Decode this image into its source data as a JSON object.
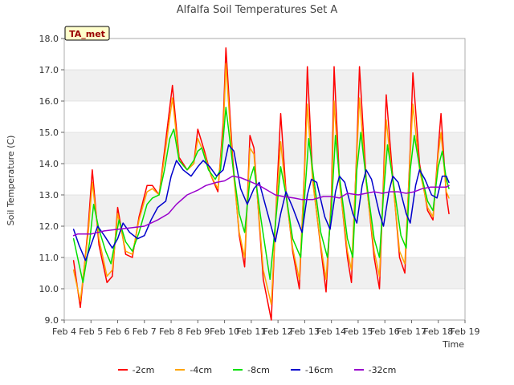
{
  "chart_data": {
    "type": "line",
    "title": "Alfalfa Soil Temperatures Set A",
    "xlabel": "Time",
    "ylabel": "Soil Temperature (C)",
    "badge": "TA_met",
    "xlim": [
      4,
      19
    ],
    "ylim": [
      9.0,
      18.0
    ],
    "x_ticks": [
      4,
      5,
      6,
      7,
      8,
      9,
      10,
      11,
      12,
      13,
      14,
      15,
      16,
      17,
      18,
      19
    ],
    "x_tick_labels": [
      "Feb 4",
      "Feb 5",
      "Feb 6",
      "Feb 7",
      "Feb 8",
      "Feb 9",
      "Feb 10",
      "Feb 11",
      "Feb 12",
      "Feb 13",
      "Feb 14",
      "Feb 15",
      "Feb 16",
      "Feb 17",
      "Feb 18",
      "Feb 19"
    ],
    "y_ticks": [
      9.0,
      10.0,
      11.0,
      12.0,
      13.0,
      14.0,
      15.0,
      16.0,
      17.0,
      18.0
    ],
    "y_tick_labels": [
      "9.0",
      "10.0",
      "11.0",
      "12.0",
      "13.0",
      "14.0",
      "15.0",
      "16.0",
      "17.0",
      "18.0"
    ],
    "grid": true,
    "legend_position": "bottom",
    "series": [
      {
        "name": "-2cm",
        "color": "#ff0000",
        "points": [
          [
            4.35,
            10.9
          ],
          [
            4.6,
            9.4
          ],
          [
            4.9,
            12.0
          ],
          [
            5.05,
            13.8
          ],
          [
            5.3,
            11.4
          ],
          [
            5.6,
            10.2
          ],
          [
            5.8,
            10.4
          ],
          [
            6.0,
            12.6
          ],
          [
            6.3,
            11.1
          ],
          [
            6.55,
            11.0
          ],
          [
            6.8,
            12.3
          ],
          [
            7.1,
            13.3
          ],
          [
            7.3,
            13.3
          ],
          [
            7.55,
            13.0
          ],
          [
            7.75,
            14.4
          ],
          [
            8.05,
            16.5
          ],
          [
            8.3,
            14.2
          ],
          [
            8.6,
            13.8
          ],
          [
            8.85,
            14.0
          ],
          [
            9.0,
            15.1
          ],
          [
            9.25,
            14.4
          ],
          [
            9.5,
            13.6
          ],
          [
            9.75,
            13.1
          ],
          [
            9.95,
            15.3
          ],
          [
            10.05,
            17.7
          ],
          [
            10.3,
            14.2
          ],
          [
            10.55,
            11.7
          ],
          [
            10.75,
            10.7
          ],
          [
            10.95,
            14.9
          ],
          [
            11.1,
            14.5
          ],
          [
            11.45,
            10.3
          ],
          [
            11.75,
            9.0
          ],
          [
            11.95,
            13.0
          ],
          [
            12.1,
            15.6
          ],
          [
            12.3,
            13.1
          ],
          [
            12.55,
            11.2
          ],
          [
            12.8,
            10.0
          ],
          [
            13.0,
            14.0
          ],
          [
            13.1,
            17.1
          ],
          [
            13.3,
            13.5
          ],
          [
            13.6,
            11.3
          ],
          [
            13.8,
            9.9
          ],
          [
            14.0,
            13.0
          ],
          [
            14.1,
            17.1
          ],
          [
            14.3,
            13.5
          ],
          [
            14.6,
            11.0
          ],
          [
            14.75,
            10.2
          ],
          [
            14.95,
            14.5
          ],
          [
            15.05,
            17.1
          ],
          [
            15.3,
            13.5
          ],
          [
            15.6,
            11.0
          ],
          [
            15.8,
            10.0
          ],
          [
            15.95,
            13.5
          ],
          [
            16.05,
            16.2
          ],
          [
            16.3,
            13.5
          ],
          [
            16.55,
            11.0
          ],
          [
            16.75,
            10.5
          ],
          [
            16.95,
            14.5
          ],
          [
            17.05,
            16.9
          ],
          [
            17.3,
            14.0
          ],
          [
            17.6,
            12.5
          ],
          [
            17.8,
            12.2
          ],
          [
            18.0,
            14.5
          ],
          [
            18.1,
            15.6
          ],
          [
            18.3,
            13.0
          ],
          [
            18.4,
            12.4
          ]
        ]
      },
      {
        "name": "-4cm",
        "color": "#ffa500",
        "points": [
          [
            4.35,
            10.6
          ],
          [
            4.6,
            9.6
          ],
          [
            4.9,
            11.8
          ],
          [
            5.05,
            13.4
          ],
          [
            5.3,
            11.6
          ],
          [
            5.6,
            10.4
          ],
          [
            5.8,
            10.6
          ],
          [
            6.0,
            12.4
          ],
          [
            6.3,
            11.2
          ],
          [
            6.55,
            11.1
          ],
          [
            6.8,
            12.2
          ],
          [
            7.1,
            13.1
          ],
          [
            7.3,
            13.2
          ],
          [
            7.55,
            13.0
          ],
          [
            7.75,
            14.2
          ],
          [
            8.05,
            16.1
          ],
          [
            8.3,
            14.1
          ],
          [
            8.6,
            13.8
          ],
          [
            8.85,
            14.0
          ],
          [
            9.0,
            14.8
          ],
          [
            9.25,
            14.3
          ],
          [
            9.5,
            13.6
          ],
          [
            9.75,
            13.2
          ],
          [
            9.95,
            15.0
          ],
          [
            10.05,
            17.2
          ],
          [
            10.3,
            14.0
          ],
          [
            10.55,
            11.8
          ],
          [
            10.75,
            11.0
          ],
          [
            10.95,
            14.5
          ],
          [
            11.1,
            14.3
          ],
          [
            11.45,
            10.6
          ],
          [
            11.75,
            9.5
          ],
          [
            11.95,
            12.8
          ],
          [
            12.1,
            14.7
          ],
          [
            12.3,
            13.0
          ],
          [
            12.55,
            11.3
          ],
          [
            12.8,
            10.3
          ],
          [
            13.0,
            13.8
          ],
          [
            13.1,
            15.9
          ],
          [
            13.3,
            13.4
          ],
          [
            13.6,
            11.4
          ],
          [
            13.8,
            10.3
          ],
          [
            14.0,
            12.8
          ],
          [
            14.1,
            16.0
          ],
          [
            14.3,
            13.4
          ],
          [
            14.6,
            11.2
          ],
          [
            14.75,
            10.6
          ],
          [
            14.95,
            14.3
          ],
          [
            15.05,
            16.1
          ],
          [
            15.3,
            13.4
          ],
          [
            15.6,
            11.2
          ],
          [
            15.8,
            10.4
          ],
          [
            15.95,
            13.3
          ],
          [
            16.05,
            15.4
          ],
          [
            16.3,
            13.4
          ],
          [
            16.55,
            11.2
          ],
          [
            16.75,
            10.8
          ],
          [
            16.95,
            14.3
          ],
          [
            17.05,
            15.9
          ],
          [
            17.3,
            13.8
          ],
          [
            17.6,
            12.6
          ],
          [
            17.8,
            12.3
          ],
          [
            18.0,
            14.3
          ],
          [
            18.1,
            15.0
          ],
          [
            18.3,
            13.1
          ],
          [
            18.4,
            12.9
          ]
        ]
      },
      {
        "name": "-8cm",
        "color": "#00e000",
        "points": [
          [
            4.35,
            11.6
          ],
          [
            4.5,
            11.0
          ],
          [
            4.7,
            10.2
          ],
          [
            4.95,
            11.5
          ],
          [
            5.1,
            12.7
          ],
          [
            5.3,
            11.9
          ],
          [
            5.55,
            11.2
          ],
          [
            5.75,
            10.8
          ],
          [
            6.05,
            12.2
          ],
          [
            6.3,
            11.5
          ],
          [
            6.55,
            11.2
          ],
          [
            6.8,
            11.8
          ],
          [
            7.1,
            12.7
          ],
          [
            7.3,
            12.9
          ],
          [
            7.55,
            13.0
          ],
          [
            7.75,
            13.8
          ],
          [
            7.95,
            14.8
          ],
          [
            8.1,
            15.1
          ],
          [
            8.3,
            14.1
          ],
          [
            8.6,
            13.8
          ],
          [
            8.85,
            14.1
          ],
          [
            9.0,
            14.4
          ],
          [
            9.15,
            14.5
          ],
          [
            9.4,
            13.8
          ],
          [
            9.65,
            13.5
          ],
          [
            9.85,
            13.8
          ],
          [
            10.05,
            15.8
          ],
          [
            10.3,
            14.0
          ],
          [
            10.55,
            12.4
          ],
          [
            10.75,
            11.8
          ],
          [
            10.95,
            13.5
          ],
          [
            11.1,
            13.9
          ],
          [
            11.35,
            12.3
          ],
          [
            11.7,
            10.3
          ],
          [
            11.95,
            12.5
          ],
          [
            12.1,
            13.9
          ],
          [
            12.3,
            13.0
          ],
          [
            12.55,
            11.6
          ],
          [
            12.85,
            11.0
          ],
          [
            13.0,
            13.0
          ],
          [
            13.15,
            14.8
          ],
          [
            13.3,
            13.8
          ],
          [
            13.6,
            11.8
          ],
          [
            13.85,
            11.0
          ],
          [
            14.0,
            12.6
          ],
          [
            14.15,
            14.9
          ],
          [
            14.3,
            13.6
          ],
          [
            14.6,
            11.6
          ],
          [
            14.8,
            11.0
          ],
          [
            14.95,
            13.8
          ],
          [
            15.1,
            15.0
          ],
          [
            15.3,
            13.5
          ],
          [
            15.6,
            11.6
          ],
          [
            15.8,
            11.0
          ],
          [
            15.95,
            13.0
          ],
          [
            16.1,
            14.6
          ],
          [
            16.3,
            13.5
          ],
          [
            16.6,
            11.7
          ],
          [
            16.8,
            11.3
          ],
          [
            16.95,
            13.8
          ],
          [
            17.1,
            14.9
          ],
          [
            17.3,
            13.9
          ],
          [
            17.6,
            12.8
          ],
          [
            17.8,
            12.5
          ],
          [
            18.0,
            13.9
          ],
          [
            18.15,
            14.4
          ],
          [
            18.3,
            13.5
          ],
          [
            18.4,
            13.2
          ]
        ]
      },
      {
        "name": "-16cm",
        "color": "#0000cc",
        "points": [
          [
            4.35,
            11.9
          ],
          [
            4.55,
            11.4
          ],
          [
            4.8,
            10.9
          ],
          [
            5.0,
            11.4
          ],
          [
            5.25,
            12.0
          ],
          [
            5.5,
            11.7
          ],
          [
            5.8,
            11.3
          ],
          [
            6.0,
            11.6
          ],
          [
            6.2,
            12.1
          ],
          [
            6.45,
            11.8
          ],
          [
            6.75,
            11.6
          ],
          [
            7.0,
            11.7
          ],
          [
            7.25,
            12.2
          ],
          [
            7.5,
            12.6
          ],
          [
            7.8,
            12.8
          ],
          [
            8.0,
            13.6
          ],
          [
            8.2,
            14.1
          ],
          [
            8.45,
            13.8
          ],
          [
            8.75,
            13.6
          ],
          [
            9.0,
            13.9
          ],
          [
            9.2,
            14.1
          ],
          [
            9.45,
            13.9
          ],
          [
            9.7,
            13.6
          ],
          [
            9.95,
            13.8
          ],
          [
            10.15,
            14.6
          ],
          [
            10.35,
            14.4
          ],
          [
            10.6,
            13.2
          ],
          [
            10.85,
            12.7
          ],
          [
            11.1,
            13.2
          ],
          [
            11.3,
            13.4
          ],
          [
            11.55,
            12.6
          ],
          [
            11.9,
            11.5
          ],
          [
            12.1,
            12.4
          ],
          [
            12.3,
            13.1
          ],
          [
            12.55,
            12.6
          ],
          [
            12.9,
            11.8
          ],
          [
            13.1,
            13.0
          ],
          [
            13.25,
            13.5
          ],
          [
            13.45,
            13.4
          ],
          [
            13.75,
            12.3
          ],
          [
            13.95,
            11.9
          ],
          [
            14.15,
            13.1
          ],
          [
            14.3,
            13.6
          ],
          [
            14.5,
            13.4
          ],
          [
            14.8,
            12.4
          ],
          [
            14.95,
            12.1
          ],
          [
            15.15,
            13.3
          ],
          [
            15.3,
            13.8
          ],
          [
            15.5,
            13.5
          ],
          [
            15.8,
            12.4
          ],
          [
            15.95,
            12.0
          ],
          [
            16.15,
            13.1
          ],
          [
            16.3,
            13.6
          ],
          [
            16.5,
            13.4
          ],
          [
            16.8,
            12.4
          ],
          [
            16.95,
            12.1
          ],
          [
            17.15,
            13.3
          ],
          [
            17.3,
            13.8
          ],
          [
            17.5,
            13.5
          ],
          [
            17.75,
            13.0
          ],
          [
            17.95,
            12.9
          ],
          [
            18.15,
            13.6
          ],
          [
            18.3,
            13.6
          ],
          [
            18.4,
            13.4
          ]
        ]
      },
      {
        "name": "-32cm",
        "color": "#9900cc",
        "points": [
          [
            4.35,
            11.7
          ],
          [
            4.5,
            11.75
          ],
          [
            5.0,
            11.75
          ],
          [
            5.5,
            11.85
          ],
          [
            6.0,
            11.9
          ],
          [
            6.5,
            11.95
          ],
          [
            7.0,
            12.0
          ],
          [
            7.5,
            12.2
          ],
          [
            7.9,
            12.4
          ],
          [
            8.2,
            12.7
          ],
          [
            8.6,
            13.0
          ],
          [
            9.0,
            13.15
          ],
          [
            9.3,
            13.3
          ],
          [
            9.7,
            13.4
          ],
          [
            10.0,
            13.45
          ],
          [
            10.3,
            13.6
          ],
          [
            10.6,
            13.55
          ],
          [
            10.9,
            13.45
          ],
          [
            11.3,
            13.3
          ],
          [
            11.6,
            13.15
          ],
          [
            11.9,
            13.0
          ],
          [
            12.2,
            12.95
          ],
          [
            12.6,
            12.9
          ],
          [
            12.9,
            12.85
          ],
          [
            13.3,
            12.85
          ],
          [
            13.7,
            12.95
          ],
          [
            14.0,
            12.95
          ],
          [
            14.3,
            12.9
          ],
          [
            14.6,
            13.05
          ],
          [
            15.0,
            13.0
          ],
          [
            15.3,
            13.05
          ],
          [
            15.6,
            13.1
          ],
          [
            15.9,
            13.05
          ],
          [
            16.2,
            13.1
          ],
          [
            16.5,
            13.1
          ],
          [
            16.8,
            13.05
          ],
          [
            17.1,
            13.1
          ],
          [
            17.4,
            13.2
          ],
          [
            17.7,
            13.25
          ],
          [
            18.0,
            13.25
          ],
          [
            18.3,
            13.25
          ],
          [
            18.4,
            13.3
          ]
        ]
      }
    ]
  }
}
